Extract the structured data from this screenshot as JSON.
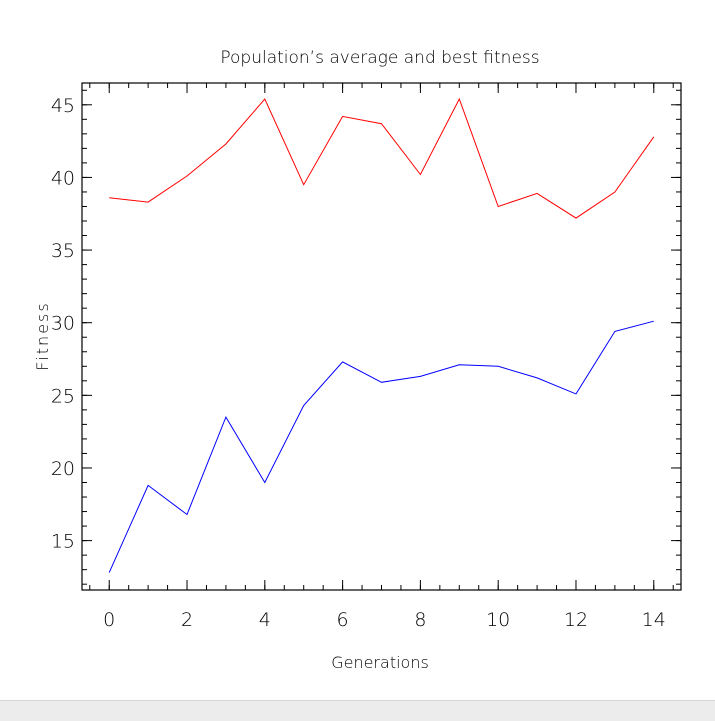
{
  "chart_data": {
    "type": "line",
    "title": "Population’s average and best fitness",
    "xlabel": "Generations",
    "ylabel": "Fitness",
    "x": [
      0,
      1,
      2,
      3,
      4,
      5,
      6,
      7,
      8,
      9,
      10,
      11,
      12,
      13,
      14
    ],
    "xlim": [
      -0.7,
      14.7
    ],
    "ylim": [
      11.6,
      46.5
    ],
    "xticks": [
      0,
      2,
      4,
      6,
      8,
      10,
      12,
      14
    ],
    "yticks": [
      15,
      20,
      25,
      30,
      35,
      40,
      45
    ],
    "x_minor_step": 0.5,
    "y_minor_step": 1,
    "grid": false,
    "legend": "none",
    "series": [
      {
        "color": "#ff0000",
        "values": [
          38.6,
          38.3,
          40.1,
          42.3,
          45.4,
          39.5,
          44.2,
          43.7,
          40.2,
          45.4,
          38.0,
          38.9,
          37.2,
          39.0,
          42.8
        ]
      },
      {
        "color": "#0000ff",
        "values": [
          12.8,
          18.8,
          16.8,
          23.5,
          19.0,
          24.3,
          27.3,
          25.9,
          26.3,
          27.1,
          27.0,
          26.2,
          25.1,
          29.4,
          30.1
        ]
      }
    ]
  }
}
